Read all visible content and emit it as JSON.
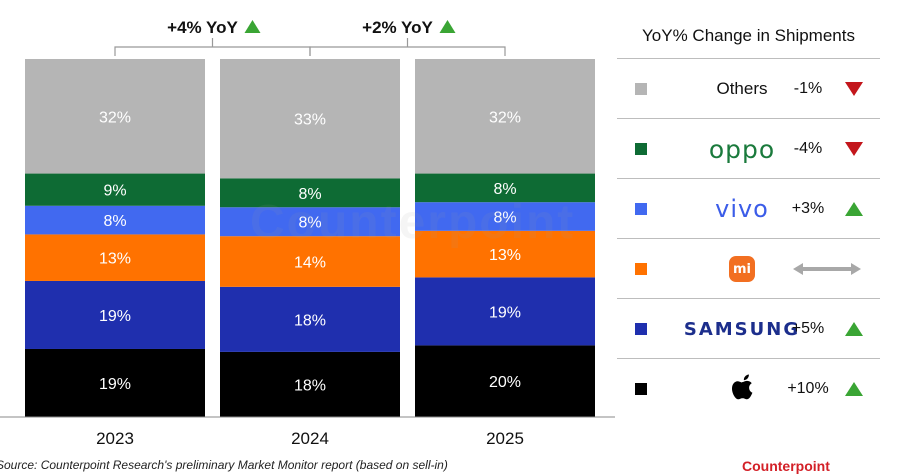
{
  "chart_data": {
    "type": "bar",
    "stacked": true,
    "percent_stacked": true,
    "categories": [
      "2023",
      "2024",
      "2025"
    ],
    "series": [
      {
        "name": "Apple",
        "color": "#000000",
        "values": [
          19,
          18,
          20
        ],
        "labels": [
          "19%",
          "18%",
          "20%"
        ]
      },
      {
        "name": "Samsung",
        "color": "#1f2fae",
        "values": [
          19,
          18,
          19
        ],
        "labels": [
          "19%",
          "18%",
          "19%"
        ]
      },
      {
        "name": "Xiaomi",
        "color": "#ff7200",
        "values": [
          13,
          14,
          13
        ],
        "labels": [
          "13%",
          "14%",
          "13%"
        ]
      },
      {
        "name": "vivo",
        "color": "#4169f0",
        "values": [
          8,
          8,
          8
        ],
        "labels": [
          "8%",
          "8%",
          "8%"
        ]
      },
      {
        "name": "OPPO",
        "color": "#0e6b34",
        "values": [
          9,
          8,
          8
        ],
        "labels": [
          "9%",
          "8%",
          "8%"
        ]
      },
      {
        "name": "Others",
        "color": "#b5b5b5",
        "values": [
          32,
          33,
          32
        ],
        "labels": [
          "32%",
          "33%",
          "32%"
        ]
      }
    ],
    "yoy_annotations": [
      {
        "between": [
          "2023",
          "2024"
        ],
        "text": "+4% YoY",
        "direction": "up"
      },
      {
        "between": [
          "2024",
          "2025"
        ],
        "text": "+2% YoY",
        "direction": "up"
      }
    ]
  },
  "legend": {
    "title": "YoY% Change in Shipments",
    "items": [
      {
        "brand": "Others",
        "brand_kind": "text",
        "swatch_color": "#b5b5b5",
        "change": "-1%",
        "direction": "down"
      },
      {
        "brand": "oppo",
        "brand_kind": "oppo",
        "swatch_color": "#0e6b34",
        "change": "-4%",
        "direction": "down"
      },
      {
        "brand": "vivo",
        "brand_kind": "vivo",
        "swatch_color": "#4169f0",
        "change": "+3%",
        "direction": "up"
      },
      {
        "brand": "mi",
        "brand_kind": "xiaomi",
        "swatch_color": "#ff7200",
        "change": "",
        "direction": "flat"
      },
      {
        "brand": "SAMSUNG",
        "brand_kind": "samsung",
        "swatch_color": "#1f2fae",
        "change": "+5%",
        "direction": "up"
      },
      {
        "brand": "",
        "brand_kind": "apple",
        "swatch_color": "#000000",
        "change": "+10%",
        "direction": "up"
      }
    ]
  },
  "colors": {
    "up": "#3aa534",
    "down": "#c3161c",
    "flat": "#a8a8a8"
  },
  "footer": {
    "source": "Source: Counterpoint Research's preliminary Market Monitor report (based on sell-in)",
    "logo": "Counterpoint"
  },
  "watermark": "Counterpoint"
}
